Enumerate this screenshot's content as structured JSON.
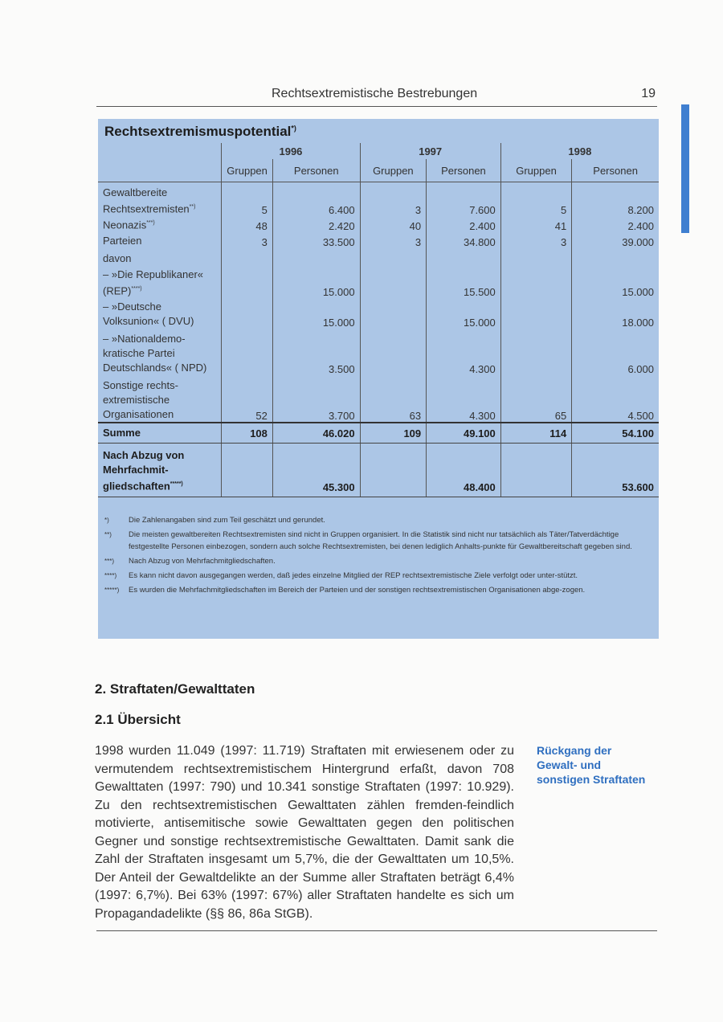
{
  "header": {
    "title": "Rechtsextremistische Bestrebungen",
    "page_number": "19"
  },
  "table": {
    "title": "Rechtsextremismuspotential",
    "title_mark": "*)",
    "years": [
      "1996",
      "1997",
      "1998"
    ],
    "subheaders": [
      "Gruppen",
      "Personen"
    ],
    "rows": [
      {
        "label": "Gewaltbereite Rechtsextremisten",
        "mark": "**)",
        "values": [
          "5",
          "6.400",
          "3",
          "7.600",
          "5",
          "8.200"
        ]
      },
      {
        "label": "Neonazis",
        "mark": "***)",
        "values": [
          "48",
          "2.420",
          "40",
          "2.400",
          "41",
          "2.400"
        ]
      },
      {
        "label": "Parteien",
        "values": [
          "3",
          "33.500",
          "3",
          "34.800",
          "3",
          "39.000"
        ]
      },
      {
        "label": "davon",
        "values": [
          "",
          "",
          "",
          "",
          "",
          ""
        ]
      },
      {
        "label": "– »Die Republikaner« (REP)",
        "mark": "****)",
        "values": [
          "",
          "15.000",
          "",
          "15.500",
          "",
          "15.000"
        ]
      },
      {
        "label": "– »Deutsche Volksunion« ( DVU)",
        "values": [
          "",
          "15.000",
          "",
          "15.000",
          "",
          "18.000"
        ]
      },
      {
        "label": "– »Nationaldemo-kratische Partei Deutschlands« ( NPD)",
        "values": [
          "",
          "3.500",
          "",
          "4.300",
          "",
          "6.000"
        ]
      },
      {
        "label": "Sonstige rechts-extremistische Organisationen",
        "values": [
          "52",
          "3.700",
          "63",
          "4.300",
          "65",
          "4.500"
        ]
      }
    ],
    "sum": {
      "label": "Summe",
      "values": [
        "108",
        "46.020",
        "109",
        "49.100",
        "114",
        "54.100"
      ]
    },
    "net": {
      "label": "Nach Abzug von Mehrfachmit-gliedschaften",
      "mark": "*****)",
      "values": [
        "",
        "45.300",
        "",
        "48.400",
        "",
        "53.600"
      ]
    },
    "footnotes": [
      {
        "mark": "*)",
        "text": "Die Zahlenangaben sind zum Teil geschätzt und gerundet."
      },
      {
        "mark": "**)",
        "text": "Die meisten gewaltbereiten Rechtsextremisten sind nicht in Gruppen organisiert. In die Statistik sind nicht nur tatsächlich als Täter/Tatverdächtige festgestellte Personen einbezogen, sondern auch solche Rechtsextremisten, bei denen lediglich Anhalts-punkte für Gewaltbereitschaft gegeben sind."
      },
      {
        "mark": "***)",
        "text": "Nach Abzug von Mehrfachmitgliedschaften."
      },
      {
        "mark": "****)",
        "text": "Es kann nicht davon ausgegangen werden, daß jedes einzelne Mitglied der REP rechtsextremistische Ziele verfolgt oder unter-stützt."
      },
      {
        "mark": "*****)",
        "text": "Es wurden die Mehrfachmitgliedschaften im Bereich der Parteien und der sonstigen rechtsextremistischen Organisationen abge-zogen."
      }
    ]
  },
  "section": {
    "heading": "2. Straftaten/Gewalttaten",
    "subheading": "2.1 Übersicht",
    "body": "1998 wurden 11.049 (1997: 11.719) Straftaten mit erwiesenem oder zu vermutendem rechtsextremistischem Hintergrund erfaßt, davon 708 Gewalttaten (1997: 790) und 10.341 sonstige Straftaten (1997: 10.929). Zu den rechtsextremistischen Gewalttaten zählen fremden-feindlich motivierte, antisemitische sowie Gewalttaten gegen den politischen Gegner und sonstige rechtsextremistische Gewalttaten. Damit sank die Zahl der Straftaten insgesamt um 5,7%, die der Gewalttaten um 10,5%. Der Anteil der Gewaltdelikte an der Summe aller Straftaten beträgt 6,4% (1997: 6,7%). Bei 63% (1997: 67%) aller Straftaten handelte es sich um Propagandadelikte (§§ 86, 86a StGB).",
    "margin_note": "Rückgang der Gewalt- und sonstigen Straftaten"
  },
  "colors": {
    "panel": "#acc6e6",
    "accent": "#2f6fc0"
  }
}
